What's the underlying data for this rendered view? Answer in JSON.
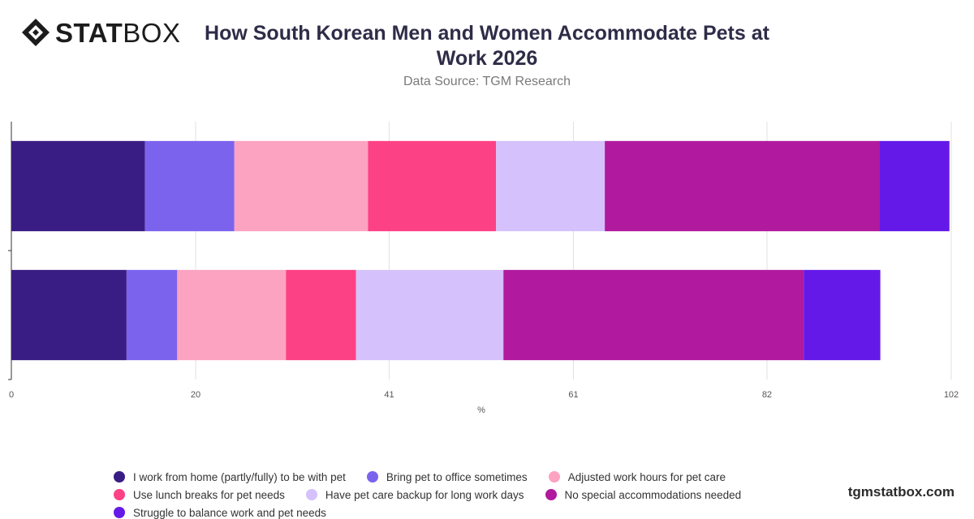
{
  "brand": {
    "logo_bold": "STAT",
    "logo_light": "BOX",
    "watermark": "tgmstatbox.com"
  },
  "header": {
    "title": "How South Korean Men and Women Accommodate Pets at Work 2026",
    "subtitle": "Data Source: TGM Research"
  },
  "chart_data": {
    "type": "bar",
    "orientation": "horizontal",
    "stacked": true,
    "categories": [
      "",
      ""
    ],
    "xlim": [
      0,
      102
    ],
    "xticks": [
      "0",
      "20",
      "41",
      "61",
      "82",
      "102"
    ],
    "xlabel": "%",
    "grid": true,
    "legend_position": "bottom",
    "series": [
      {
        "name": "I work from home (partly/fully) to be with pet",
        "color": "#3a1d84",
        "values": [
          14.5,
          12.5
        ]
      },
      {
        "name": "Bring pet to office sometimes",
        "color": "#7b63ee",
        "values": [
          9.7,
          5.5
        ]
      },
      {
        "name": "Adjusted work hours for pet care",
        "color": "#fca3c1",
        "values": [
          14.5,
          11.8
        ]
      },
      {
        "name": "Use lunch breaks for pet needs",
        "color": "#fd4185",
        "values": [
          13.9,
          7.6
        ]
      },
      {
        "name": "Have pet care backup for long work days",
        "color": "#d5c1fb",
        "values": [
          11.8,
          16.0
        ]
      },
      {
        "name": "No special accommodations needed",
        "color": "#b11a9e",
        "values": [
          29.8,
          32.6
        ]
      },
      {
        "name": "Struggle to balance work and pet needs",
        "color": "#6419e9",
        "values": [
          7.6,
          8.3
        ]
      }
    ]
  }
}
